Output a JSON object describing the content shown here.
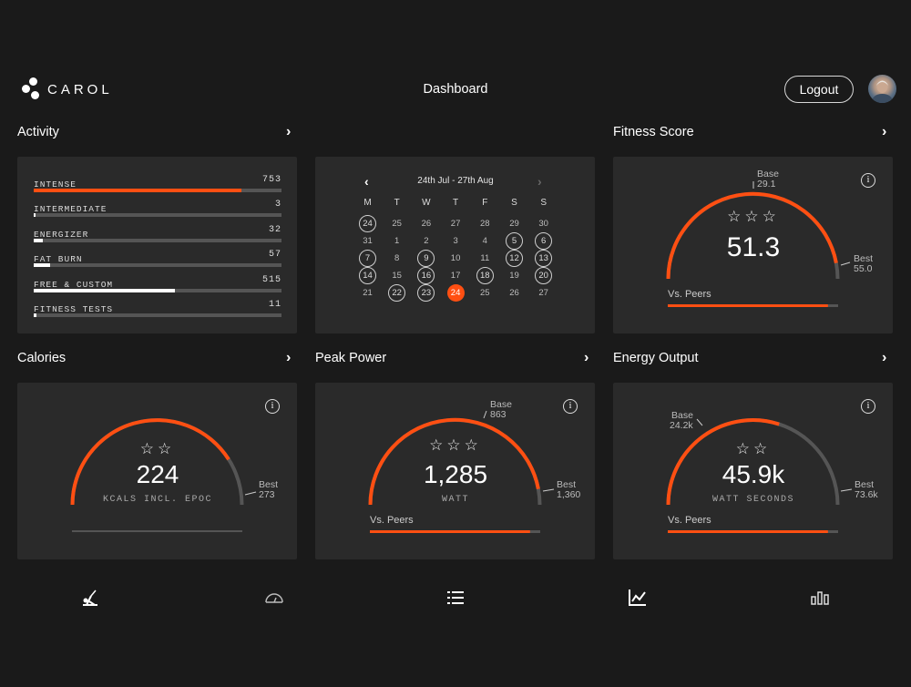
{
  "header": {
    "brand": "CAROL",
    "title": "Dashboard",
    "logout_label": "Logout"
  },
  "colors": {
    "accent": "#ff4f12",
    "card": "#2a2a2a",
    "background": "#1a1a1a",
    "track": "#555555"
  },
  "activity": {
    "title": "Activity",
    "rows": [
      {
        "label": "INTENSE",
        "value": "753",
        "fraction": 0.84,
        "color": "#ff4f12"
      },
      {
        "label": "INTERMEDIATE",
        "value": "3",
        "fraction": 0.005,
        "color": "#ffffff"
      },
      {
        "label": "ENERGIZER",
        "value": "32",
        "fraction": 0.035,
        "color": "#ffffff"
      },
      {
        "label": "FAT BURN",
        "value": "57",
        "fraction": 0.065,
        "color": "#ffffff"
      },
      {
        "label": "FREE & CUSTOM",
        "value": "515",
        "fraction": 0.57,
        "color": "#ffffff"
      },
      {
        "label": "FITNESS TESTS",
        "value": "11",
        "fraction": 0.012,
        "color": "#ffffff"
      }
    ]
  },
  "calendar": {
    "range": "24th Jul - 27th Aug",
    "prev_icon": "chevron-left-icon",
    "next_icon": "chevron-right-icon",
    "weekdays": [
      "M",
      "T",
      "W",
      "T",
      "F",
      "S",
      "S"
    ],
    "weeks": [
      [
        {
          "d": "24",
          "s": "circled"
        },
        {
          "d": "25"
        },
        {
          "d": "26"
        },
        {
          "d": "27"
        },
        {
          "d": "28"
        },
        {
          "d": "29"
        },
        {
          "d": "30"
        }
      ],
      [
        {
          "d": "31"
        },
        {
          "d": "1"
        },
        {
          "d": "2"
        },
        {
          "d": "3"
        },
        {
          "d": "4"
        },
        {
          "d": "5",
          "s": "circled"
        },
        {
          "d": "6",
          "s": "circled"
        }
      ],
      [
        {
          "d": "7",
          "s": "circled"
        },
        {
          "d": "8"
        },
        {
          "d": "9",
          "s": "circled"
        },
        {
          "d": "10"
        },
        {
          "d": "11"
        },
        {
          "d": "12",
          "s": "circled"
        },
        {
          "d": "13",
          "s": "circled"
        }
      ],
      [
        {
          "d": "14",
          "s": "circled"
        },
        {
          "d": "15"
        },
        {
          "d": "16",
          "s": "circled"
        },
        {
          "d": "17"
        },
        {
          "d": "18",
          "s": "circled"
        },
        {
          "d": "19"
        },
        {
          "d": "20",
          "s": "circled"
        }
      ],
      [
        {
          "d": "21"
        },
        {
          "d": "22",
          "s": "circled"
        },
        {
          "d": "23",
          "s": "circled"
        },
        {
          "d": "24",
          "s": "today"
        },
        {
          "d": "25"
        },
        {
          "d": "26"
        },
        {
          "d": "27"
        }
      ]
    ]
  },
  "fitness": {
    "title": "Fitness Score",
    "value": "51.3",
    "stars": "☆☆☆",
    "base_label": "Base",
    "base_value": "29.1",
    "best_label": "Best",
    "best_value": "55.0",
    "peers_label": "Vs. Peers",
    "gauge_fraction": 0.94,
    "peers_fraction": 0.94
  },
  "calories": {
    "title": "Calories",
    "value": "224",
    "unit": "KCALS INCL. EPOC",
    "stars": "☆☆",
    "best_label": "Best",
    "best_value": "273",
    "gauge_fraction": 0.82
  },
  "peak_power": {
    "title": "Peak Power",
    "value": "1,285",
    "unit": "WATT",
    "stars": "☆☆☆",
    "base_label": "Base",
    "base_value": "863",
    "best_label": "Best",
    "best_value": "1,360",
    "peers_label": "Vs. Peers",
    "gauge_fraction": 0.94,
    "peers_fraction": 0.94
  },
  "energy": {
    "title": "Energy Output",
    "value": "45.9k",
    "unit": "WATT SECONDS",
    "stars": "☆☆",
    "base_label": "Base",
    "base_value": "24.2k",
    "best_label": "Best",
    "best_value": "73.6k",
    "peers_label": "Vs. Peers",
    "gauge_fraction": 0.6,
    "peers_fraction": 0.94
  },
  "nav": {
    "items": [
      "rower-icon",
      "gauge-icon",
      "list-icon",
      "line-chart-icon",
      "bar-chart-icon"
    ]
  }
}
